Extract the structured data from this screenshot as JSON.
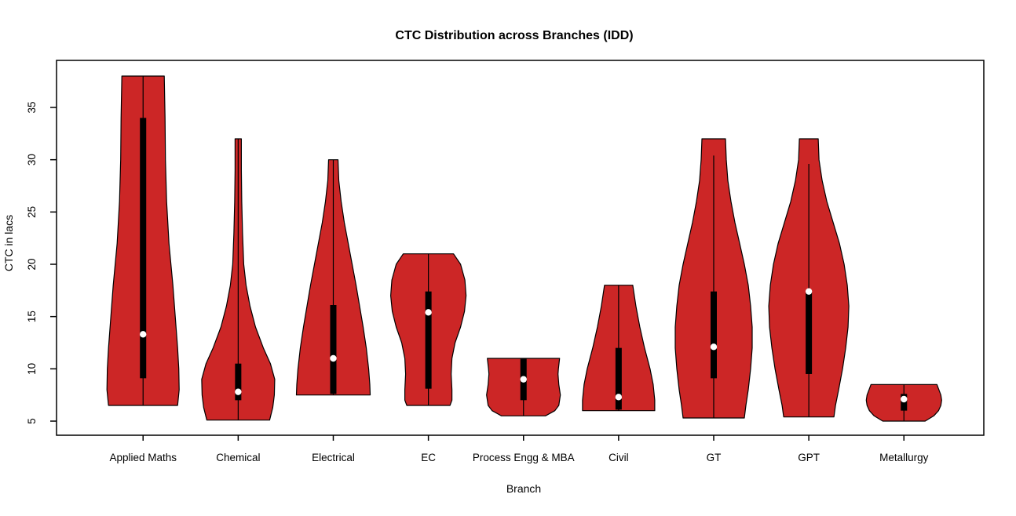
{
  "chart_data": {
    "type": "violin",
    "title": "CTC Distribution across Branches (IDD)",
    "xlabel": "Branch",
    "ylabel": "CTC in lacs",
    "xlim": [
      0.09,
      9.84
    ],
    "ylim": [
      3.65,
      39.5
    ],
    "yticks": [
      5,
      10,
      15,
      20,
      25,
      30,
      35
    ],
    "grid": false,
    "legend": "none",
    "profile_format": "[ctc_in_lacs, half_width_px]",
    "colors": {
      "violin_fill": "#CC2626",
      "violin_stroke": "#000000",
      "box": "#000000",
      "median_dot": "#FFFFFF",
      "text": "#000000",
      "background": "#FFFFFF"
    },
    "categories": [
      "Applied Maths",
      "Chemical",
      "Electrical",
      "EC",
      "Process Engg & MBA",
      "Civil",
      "GT",
      "GPT",
      "Metallurgy"
    ],
    "series": [
      {
        "name": "Applied Maths",
        "min": 6.5,
        "max": 38,
        "q1": 9.1,
        "q3": 34,
        "median": 13.3,
        "whisker_low": 6.5,
        "whisker_high": 38,
        "profile": [
          [
            38,
            27
          ],
          [
            34,
            28
          ],
          [
            30,
            28.5
          ],
          [
            26,
            30
          ],
          [
            22,
            33
          ],
          [
            18,
            38
          ],
          [
            15,
            41
          ],
          [
            12,
            44
          ],
          [
            10,
            45.5
          ],
          [
            8,
            46
          ],
          [
            6.5,
            44
          ]
        ]
      },
      {
        "name": "Chemical",
        "min": 5.1,
        "max": 32,
        "q1": 7.0,
        "q3": 10.5,
        "median": 7.8,
        "whisker_low": 5.1,
        "whisker_high": 32,
        "profile": [
          [
            32,
            4
          ],
          [
            29,
            4
          ],
          [
            26,
            4.5
          ],
          [
            23,
            5.5
          ],
          [
            20,
            7
          ],
          [
            18,
            10
          ],
          [
            16,
            15
          ],
          [
            14,
            22
          ],
          [
            12,
            32
          ],
          [
            10.5,
            41
          ],
          [
            9,
            46.5
          ],
          [
            7.5,
            46
          ],
          [
            6.3,
            44
          ],
          [
            5.1,
            40
          ]
        ]
      },
      {
        "name": "Electrical",
        "min": 7.5,
        "max": 30,
        "q1": 7.6,
        "q3": 16.1,
        "median": 11.0,
        "whisker_low": 7.5,
        "whisker_high": 30,
        "profile": [
          [
            30,
            6
          ],
          [
            28,
            7
          ],
          [
            26,
            10
          ],
          [
            24,
            14
          ],
          [
            22,
            19
          ],
          [
            20,
            24
          ],
          [
            18,
            29
          ],
          [
            16,
            33.5
          ],
          [
            14,
            38
          ],
          [
            12,
            42
          ],
          [
            10,
            45
          ],
          [
            8.5,
            46.5
          ],
          [
            7.5,
            47
          ]
        ]
      },
      {
        "name": "EC",
        "min": 6.5,
        "max": 21,
        "q1": 8.1,
        "q3": 17.4,
        "median": 15.4,
        "whisker_low": 6.5,
        "whisker_high": 21,
        "profile": [
          [
            21,
            32
          ],
          [
            20,
            41
          ],
          [
            18.5,
            46.5
          ],
          [
            17,
            48
          ],
          [
            15.5,
            46
          ],
          [
            14,
            41
          ],
          [
            12.5,
            34
          ],
          [
            11,
            30
          ],
          [
            9.5,
            29
          ],
          [
            8,
            30
          ],
          [
            7,
            30
          ],
          [
            6.5,
            27.5
          ]
        ]
      },
      {
        "name": "Process Engg & MBA",
        "min": 5.5,
        "max": 11,
        "q1": 7.0,
        "q3": 11.0,
        "median": 9.0,
        "whisker_low": 5.5,
        "whisker_high": 11,
        "profile": [
          [
            11,
            46
          ],
          [
            10,
            44.5
          ],
          [
            9.5,
            44
          ],
          [
            8.5,
            45
          ],
          [
            7.5,
            47
          ],
          [
            6.5,
            45
          ],
          [
            6,
            40
          ],
          [
            5.5,
            28
          ]
        ]
      },
      {
        "name": "Civil",
        "min": 6.0,
        "max": 18,
        "q1": 6.1,
        "q3": 12.0,
        "median": 7.3,
        "whisker_low": 6.0,
        "whisker_high": 18,
        "profile": [
          [
            18,
            18
          ],
          [
            16,
            22
          ],
          [
            14,
            27
          ],
          [
            12,
            33
          ],
          [
            10,
            40
          ],
          [
            8.5,
            44
          ],
          [
            7,
            46
          ],
          [
            6,
            46
          ]
        ]
      },
      {
        "name": "GT",
        "min": 5.3,
        "max": 32,
        "q1": 9.1,
        "q3": 17.4,
        "median": 12.1,
        "whisker_low": 5.3,
        "whisker_high": 30.4,
        "profile": [
          [
            32,
            15
          ],
          [
            30,
            16
          ],
          [
            28,
            18
          ],
          [
            26,
            22
          ],
          [
            24,
            27
          ],
          [
            22,
            33
          ],
          [
            20,
            39
          ],
          [
            18,
            44
          ],
          [
            16,
            47
          ],
          [
            14,
            49
          ],
          [
            12,
            49
          ],
          [
            10,
            47
          ],
          [
            8,
            44
          ],
          [
            6.5,
            41
          ],
          [
            5.3,
            39
          ]
        ]
      },
      {
        "name": "GPT",
        "min": 5.4,
        "max": 32,
        "q1": 9.5,
        "q3": 17.4,
        "median": 17.4,
        "whisker_low": 5.4,
        "whisker_high": 29.6,
        "profile": [
          [
            32,
            12
          ],
          [
            30,
            13
          ],
          [
            28,
            17
          ],
          [
            26,
            23
          ],
          [
            24,
            31
          ],
          [
            22,
            39
          ],
          [
            20,
            45
          ],
          [
            18,
            49
          ],
          [
            16,
            51
          ],
          [
            14,
            50
          ],
          [
            12,
            47
          ],
          [
            10,
            43
          ],
          [
            8,
            38
          ],
          [
            6.5,
            34
          ],
          [
            5.4,
            32
          ]
        ]
      },
      {
        "name": "Metallurgy",
        "min": 5.0,
        "max": 8.5,
        "q1": 6.0,
        "q3": 7.6,
        "median": 7.1,
        "whisker_low": 5.0,
        "whisker_high": 8.5,
        "profile": [
          [
            8.5,
            42
          ],
          [
            7.5,
            47
          ],
          [
            7,
            48
          ],
          [
            6.5,
            47
          ],
          [
            6,
            44
          ],
          [
            5.5,
            38
          ],
          [
            5,
            27
          ]
        ]
      }
    ]
  }
}
